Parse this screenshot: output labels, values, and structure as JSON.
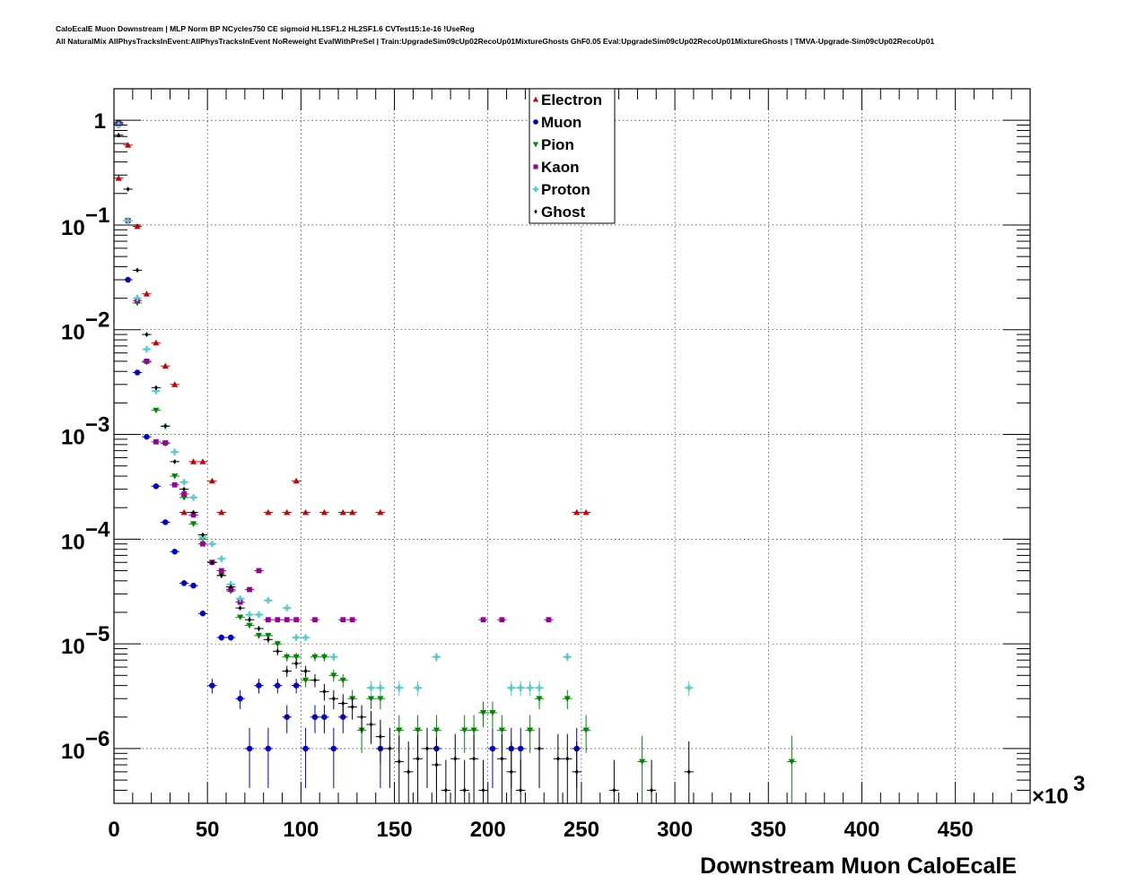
{
  "header": {
    "line1": "CaloEcalE Muon Downstream | MLP Norm BP NCycles750 CE sigmoid HL1SF1.2 HL2SF1.6 CVTest15:1e-16 !UseReg",
    "line2": "All NaturalMix AllPhysTracksInEvent:AllPhysTracksInEvent NoReweight EvalWithPreSel | Train:UpgradeSim09cUp02RecoUp01MixtureGhosts GhF0.05 Eval:UpgradeSim09cUp02RecoUp01MixtureGhosts | TMVA-Upgrade-Sim09cUp02RecoUp01"
  },
  "chart_data": {
    "type": "scatter",
    "xlabel": "Downstream Muon CaloEcalE",
    "x_multiplier": "×10",
    "x_multiplier_exp": "3",
    "xlim": [
      0,
      490
    ],
    "ylim": [
      3e-07,
      2
    ],
    "y_scale": "log",
    "x_ticks": [
      0,
      50,
      100,
      150,
      200,
      250,
      300,
      350,
      400,
      450
    ],
    "x_tick_labels": [
      "0",
      "50",
      "100",
      "150",
      "200",
      "250",
      "300",
      "350",
      "400",
      "450"
    ],
    "y_ticks": [
      1,
      0.1,
      0.01,
      0.001,
      0.0001,
      1e-05,
      1e-06
    ],
    "y_tick_labels": [
      {
        "base": "1",
        "exp": ""
      },
      {
        "base": "10",
        "exp": "−1"
      },
      {
        "base": "10",
        "exp": "−2"
      },
      {
        "base": "10",
        "exp": "−3"
      },
      {
        "base": "10",
        "exp": "−4"
      },
      {
        "base": "10",
        "exp": "−5"
      },
      {
        "base": "10",
        "exp": "−6"
      }
    ],
    "grid": true,
    "legend_position": "top-center",
    "series": [
      {
        "name": "Electron",
        "color": "#cc0000",
        "marker": "triangle-up",
        "x": [
          2.5,
          7.5,
          12.5,
          17.5,
          22.5,
          27.5,
          32.5,
          37.5,
          42.5,
          47.5,
          52.5,
          57.5,
          82.5,
          92.5,
          97.5,
          102.5,
          112.5,
          122.5,
          127.5,
          142.5,
          247.5,
          252.5
        ],
        "y": [
          0.28,
          0.58,
          0.097,
          0.022,
          0.0075,
          0.0045,
          0.003,
          0.00018,
          0.00055,
          0.00055,
          0.00036,
          0.00018,
          0.00018,
          0.00018,
          0.00036,
          0.00018,
          0.00018,
          0.00018,
          0.00018,
          0.00018,
          0.00018,
          0.00018
        ]
      },
      {
        "name": "Muon",
        "color": "#0000cc",
        "marker": "circle",
        "x": [
          2.5,
          7.5,
          12.5,
          17.5,
          22.5,
          27.5,
          32.5,
          37.5,
          42.5,
          47.5,
          52.5,
          57.5,
          62.5,
          67.5,
          72.5,
          77.5,
          82.5,
          87.5,
          92.5,
          97.5,
          102.5,
          107.5,
          112.5,
          117.5,
          122.5,
          142.5,
          172.5,
          202.5,
          212.5,
          217.5,
          247.5
        ],
        "y": [
          0.95,
          0.03,
          0.0039,
          0.00095,
          0.00032,
          0.000145,
          7.6e-05,
          3.8e-05,
          3.6e-05,
          1.95e-05,
          4e-06,
          1.15e-05,
          1.15e-05,
          3e-06,
          1e-06,
          4e-06,
          1e-06,
          4e-06,
          2e-06,
          4e-06,
          1e-06,
          2e-06,
          2e-06,
          1e-06,
          2e-06,
          1e-06,
          1e-06,
          1e-06,
          1e-06,
          1e-06,
          1e-06
        ]
      },
      {
        "name": "Pion",
        "color": "#008800",
        "marker": "triangle-down",
        "x": [
          2.5,
          7.5,
          12.5,
          17.5,
          22.5,
          27.5,
          32.5,
          37.5,
          42.5,
          47.5,
          52.5,
          57.5,
          62.5,
          67.5,
          72.5,
          77.5,
          82.5,
          87.5,
          92.5,
          97.5,
          102.5,
          107.5,
          112.5,
          117.5,
          122.5,
          127.5,
          132.5,
          137.5,
          142.5,
          152.5,
          162.5,
          172.5,
          187.5,
          192.5,
          197.5,
          202.5,
          207.5,
          222.5,
          227.5,
          242.5,
          252.5,
          282.5,
          362.5
        ],
        "y": [
          0.93,
          0.11,
          0.018,
          0.0049,
          0.0017,
          0.00082,
          0.0004,
          0.00025,
          0.00014,
          0.0001,
          6e-05,
          4.5e-05,
          3.2e-05,
          1.8e-05,
          1.5e-05,
          1.2e-05,
          1.2e-05,
          1e-05,
          7.5e-06,
          7.5e-06,
          4.5e-06,
          7.5e-06,
          7.5e-06,
          5e-06,
          4.5e-06,
          3e-06,
          1.5e-06,
          3e-06,
          3e-06,
          1.5e-06,
          1.5e-06,
          1.5e-06,
          1.5e-06,
          1.5e-06,
          2.2e-06,
          2.2e-06,
          1.5e-06,
          1.5e-06,
          3e-06,
          3e-06,
          1.5e-06,
          7.5e-07,
          7.5e-07
        ]
      },
      {
        "name": "Kaon",
        "color": "#990099",
        "marker": "square",
        "x": [
          2.5,
          7.5,
          12.5,
          17.5,
          22.5,
          27.5,
          32.5,
          37.5,
          42.5,
          47.5,
          52.5,
          57.5,
          62.5,
          67.5,
          72.5,
          77.5,
          82.5,
          87.5,
          92.5,
          97.5,
          107.5,
          122.5,
          127.5,
          197.5,
          207.5,
          232.5
        ],
        "y": [
          0.92,
          0.11,
          0.019,
          0.005,
          0.00085,
          0.00083,
          0.00033,
          0.00027,
          0.00017,
          9e-05,
          6e-05,
          5e-05,
          3.3e-05,
          2.5e-05,
          3.3e-05,
          5e-05,
          1.7e-05,
          1.7e-05,
          1.7e-05,
          1.7e-05,
          1.7e-05,
          1.7e-05,
          1.7e-05,
          1.7e-05,
          1.7e-05,
          1.7e-05
        ]
      },
      {
        "name": "Proton",
        "color": "#55cccc",
        "marker": "plus",
        "x": [
          2.5,
          7.5,
          12.5,
          17.5,
          22.5,
          27.5,
          32.5,
          37.5,
          42.5,
          47.5,
          52.5,
          57.5,
          62.5,
          67.5,
          72.5,
          77.5,
          82.5,
          92.5,
          97.5,
          102.5,
          117.5,
          137.5,
          142.5,
          152.5,
          162.5,
          172.5,
          212.5,
          217.5,
          222.5,
          227.5,
          242.5,
          307.5
        ],
        "y": [
          0.9,
          0.11,
          0.02,
          0.0065,
          0.0026,
          0.0012,
          0.00068,
          0.00035,
          0.00025,
          0.000105,
          9e-05,
          6.5e-05,
          3.7e-05,
          2.7e-05,
          1.9e-05,
          1.9e-05,
          2.6e-05,
          2.2e-05,
          1.15e-05,
          1.15e-05,
          7.5e-06,
          3.8e-06,
          3.8e-06,
          3.8e-06,
          3.8e-06,
          7.5e-06,
          3.8e-06,
          3.8e-06,
          3.8e-06,
          3.8e-06,
          7.5e-06,
          3.8e-06
        ]
      },
      {
        "name": "Ghost",
        "color": "#000000",
        "marker": "diamond",
        "x": [
          2.5,
          7.5,
          12.5,
          17.5,
          22.5,
          27.5,
          32.5,
          37.5,
          42.5,
          47.5,
          52.5,
          57.5,
          62.5,
          67.5,
          72.5,
          77.5,
          82.5,
          87.5,
          92.5,
          97.5,
          102.5,
          107.5,
          112.5,
          117.5,
          122.5,
          127.5,
          132.5,
          137.5,
          142.5,
          147.5,
          152.5,
          157.5,
          162.5,
          167.5,
          172.5,
          177.5,
          182.5,
          187.5,
          192.5,
          197.5,
          207.5,
          212.5,
          217.5,
          227.5,
          237.5,
          242.5,
          247.5,
          267.5,
          287.5,
          307.5
        ],
        "y": [
          0.72,
          0.22,
          0.037,
          0.009,
          0.0028,
          0.0012,
          0.00055,
          0.0003,
          0.00018,
          0.00011,
          6e-05,
          4.5e-05,
          3.5e-05,
          2.2e-05,
          1.7e-05,
          1.4e-05,
          1.1e-05,
          8.5e-06,
          5.5e-06,
          6.5e-06,
          5.5e-06,
          4.5e-06,
          3.5e-06,
          3e-06,
          2.7e-06,
          2.5e-06,
          2e-06,
          1.7e-06,
          1.3e-06,
          1e-06,
          7.5e-07,
          6e-07,
          8e-07,
          1e-06,
          7e-07,
          4e-07,
          8e-07,
          4e-07,
          8e-07,
          4e-07,
          8e-07,
          6e-07,
          4e-07,
          1e-06,
          8e-07,
          8e-07,
          6e-07,
          4e-07,
          4e-07,
          6e-07
        ]
      }
    ]
  }
}
